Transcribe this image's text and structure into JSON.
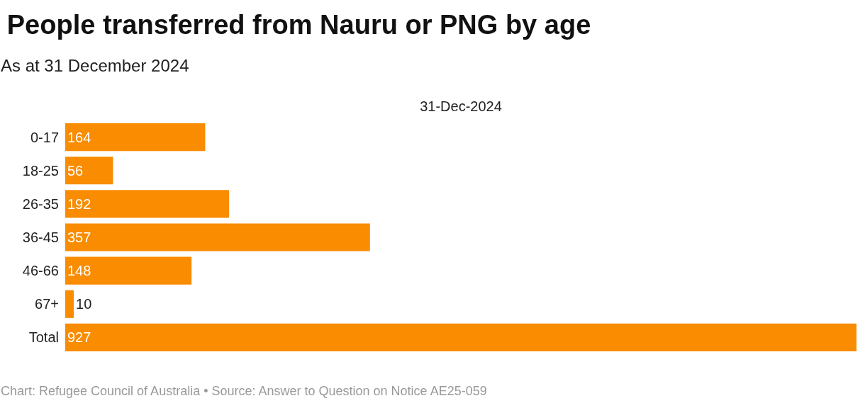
{
  "chart_data": {
    "type": "bar",
    "orientation": "horizontal",
    "title": "People transferred from Nauru or PNG by age",
    "subtitle": "As at 31 December 2024",
    "xlabel": "31-Dec-2024",
    "categories": [
      "0-17",
      "18-25",
      "26-35",
      "36-45",
      "46-66",
      "67+",
      "Total"
    ],
    "values": [
      164,
      56,
      192,
      357,
      148,
      10,
      927
    ],
    "color": "#f98c00",
    "data_labels": true,
    "grid": false,
    "legend": false,
    "annotations": [
      "Chart: Refugee Council of Australia • Source: Answer to Question on Notice AE25-059"
    ]
  }
}
